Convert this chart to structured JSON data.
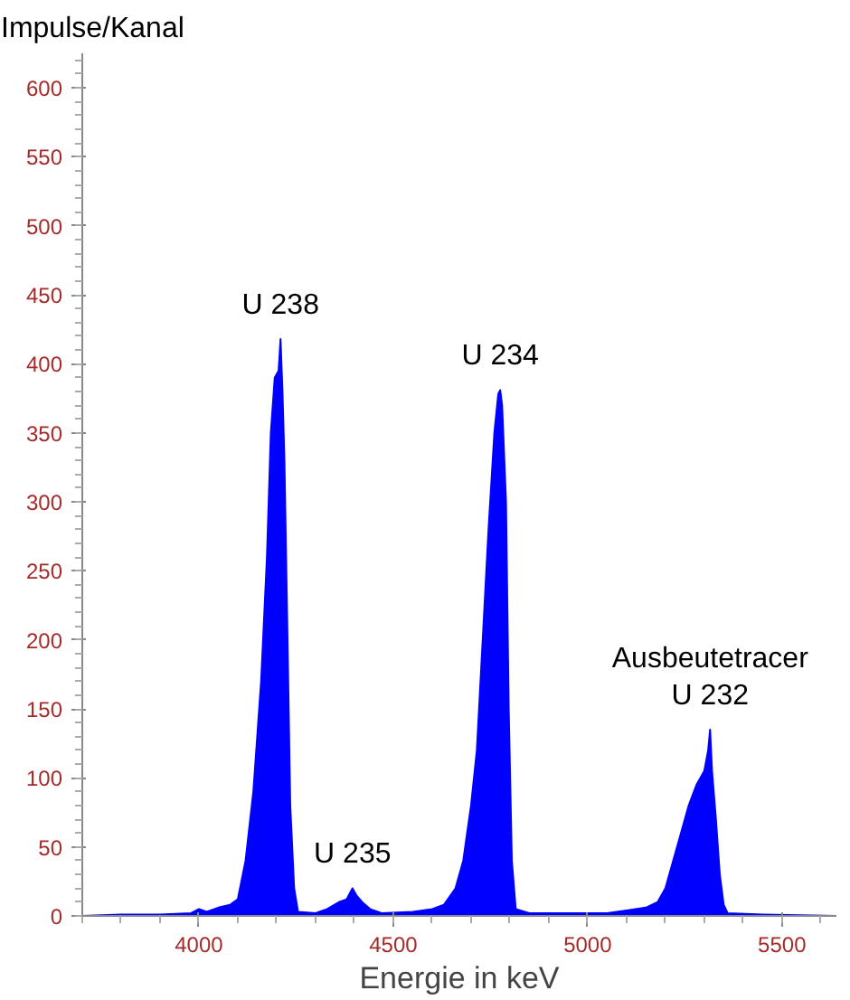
{
  "chart_data": {
    "type": "area",
    "xlabel": "Energie in keV",
    "ylabel": "Impulse/Kanal",
    "x": [
      3700,
      3800,
      3900,
      3980,
      4000,
      4020,
      4050,
      4080,
      4100,
      4120,
      4140,
      4160,
      4175,
      4185,
      4195,
      4205,
      4210,
      4215,
      4220,
      4228,
      4235,
      4245,
      4255,
      4300,
      4330,
      4360,
      4380,
      4395,
      4405,
      4420,
      4440,
      4470,
      4550,
      4600,
      4630,
      4660,
      4680,
      4700,
      4715,
      4730,
      4745,
      4760,
      4770,
      4775,
      4780,
      4790,
      4797,
      4805,
      4815,
      4850,
      4950,
      5050,
      5100,
      5150,
      5180,
      5200,
      5220,
      5240,
      5260,
      5280,
      5300,
      5310,
      5315,
      5320,
      5330,
      5340,
      5350,
      5360,
      5450,
      5640
    ],
    "series": [
      {
        "color": "#0000ff",
        "values": [
          0,
          1,
          1,
          2,
          5,
          3,
          6,
          8,
          12,
          40,
          90,
          170,
          260,
          350,
          390,
          395,
          418,
          380,
          330,
          200,
          80,
          20,
          3,
          2,
          5,
          10,
          12,
          20,
          15,
          10,
          5,
          2,
          3,
          5,
          8,
          20,
          40,
          80,
          120,
          200,
          280,
          350,
          378,
          381,
          370,
          300,
          150,
          40,
          5,
          2,
          2,
          2,
          4,
          6,
          10,
          20,
          40,
          60,
          80,
          95,
          105,
          120,
          135,
          105,
          70,
          30,
          8,
          2,
          1,
          0
        ]
      }
    ],
    "xlim": [
      3700,
      5640
    ],
    "ylim": [
      0,
      625
    ],
    "xticks": [
      4000,
      4500,
      5000,
      5500
    ],
    "yticks": [
      0,
      50,
      100,
      150,
      200,
      250,
      300,
      350,
      400,
      450,
      500,
      550,
      600
    ],
    "grid": false,
    "annotations": [
      {
        "text": "U 238",
        "x": 4210,
        "y": 418
      },
      {
        "text": "U 235",
        "x": 4395,
        "y": 20
      },
      {
        "text": "U 234",
        "x": 4775,
        "y": 381
      },
      {
        "text": "Ausbeutetracer\nU 232",
        "x": 5315,
        "y": 135
      }
    ]
  }
}
